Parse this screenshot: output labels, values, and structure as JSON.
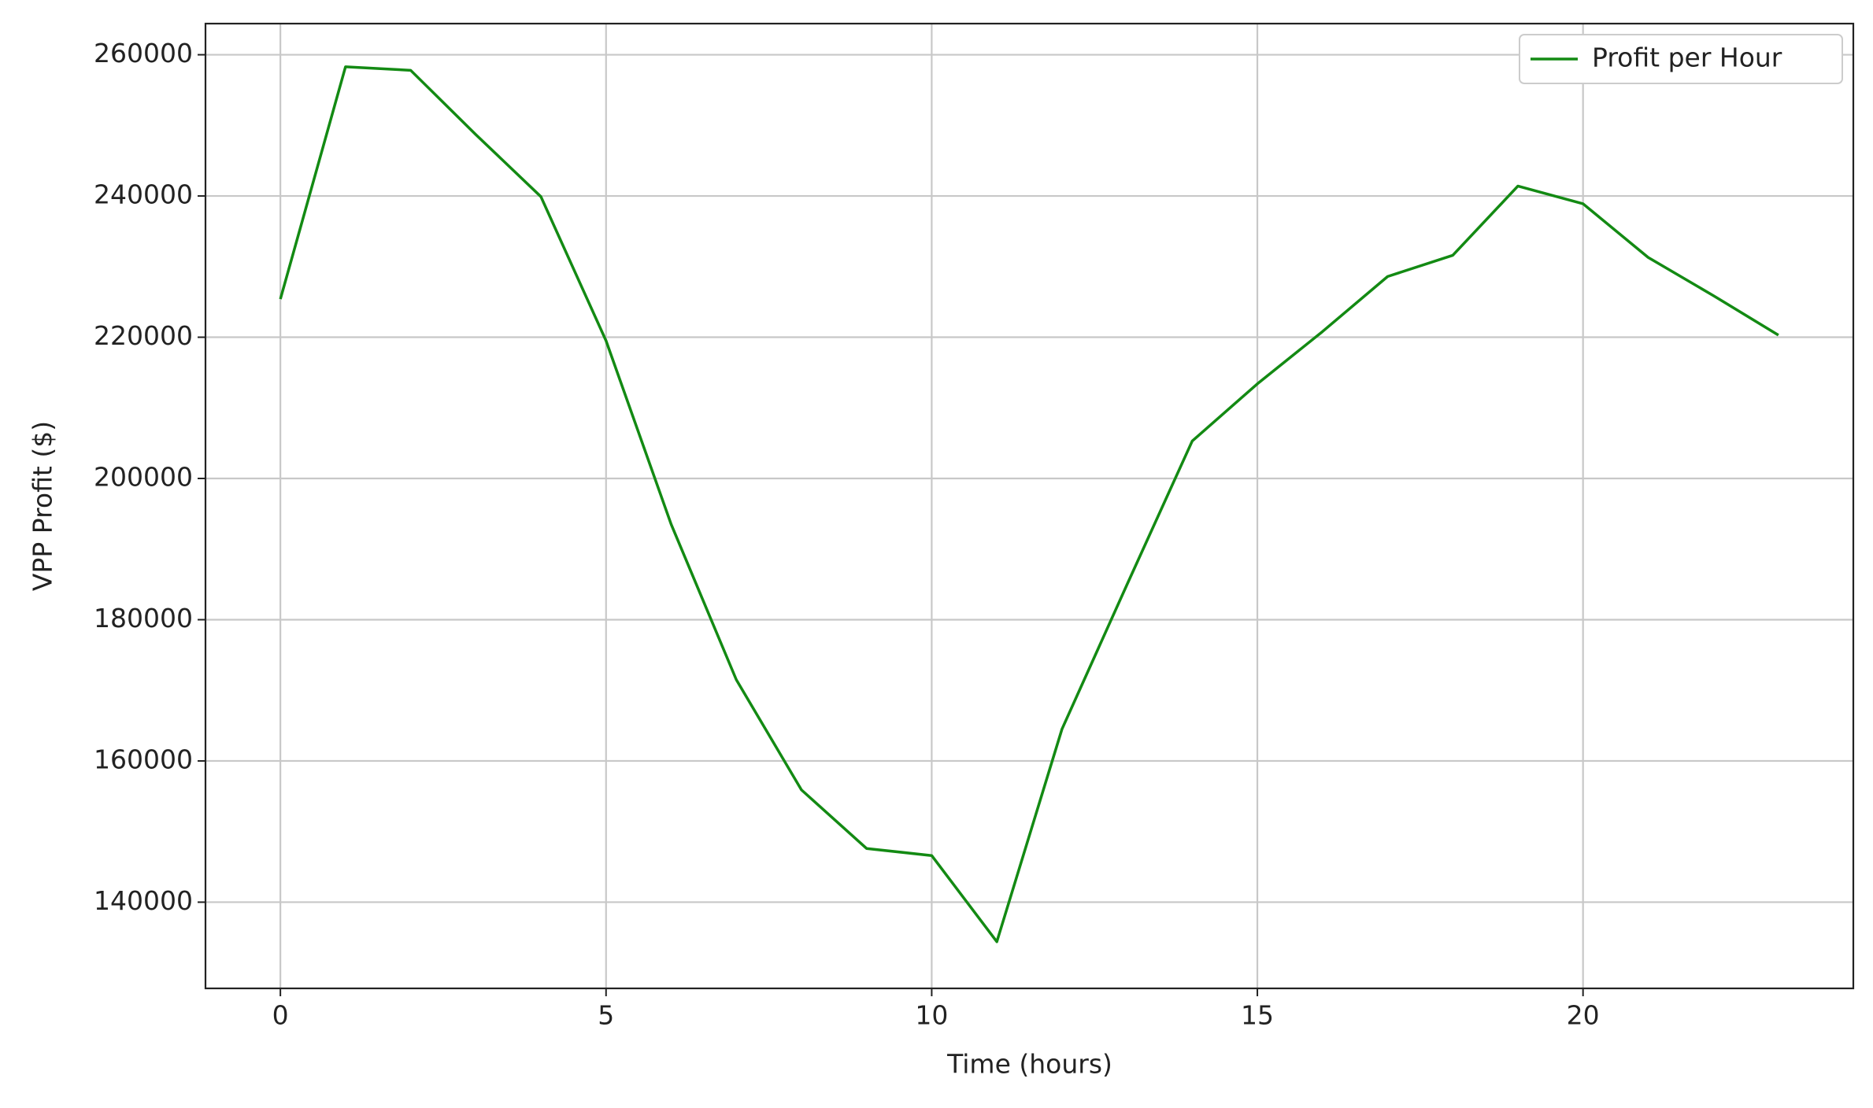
{
  "chart_data": {
    "type": "line",
    "x_label": "Time (hours)",
    "y_label": "VPP Profit ($)",
    "x": [
      0,
      1,
      2,
      3,
      4,
      5,
      6,
      7,
      8,
      9,
      10,
      11,
      12,
      13,
      14,
      15,
      16,
      17,
      18,
      19,
      20,
      21,
      22,
      23
    ],
    "series": [
      {
        "name": "Profit per Hour",
        "color": "#138a13",
        "values": [
          225400,
          258300,
          257800,
          248700,
          239900,
          219500,
          193500,
          171500,
          155900,
          147600,
          146600,
          134400,
          164500,
          185000,
          205300,
          213400,
          220800,
          228600,
          231600,
          241400,
          238900,
          231300,
          225900,
          220300
        ]
      }
    ],
    "xlim": [
      -1.15,
      24.15
    ],
    "xticks": [
      0,
      5,
      10,
      15,
      20
    ],
    "ylim": [
      127790,
      264410
    ],
    "yticks": [
      140000,
      160000,
      180000,
      200000,
      220000,
      240000,
      260000
    ],
    "grid": true,
    "legend": "upper right"
  }
}
